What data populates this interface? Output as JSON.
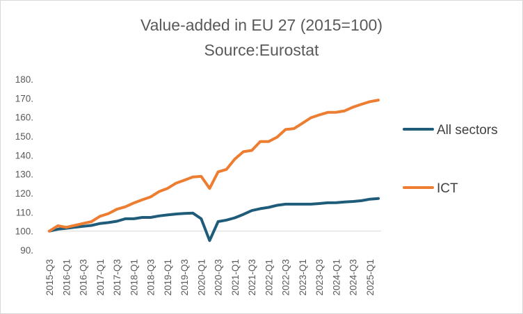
{
  "chart_data": {
    "type": "line",
    "title": "Value-added in EU 27 (2015=100)",
    "subtitle": "Source:Eurostat",
    "xlabel": "",
    "ylabel": "",
    "ylim": [
      90,
      180
    ],
    "yticks": [
      "90.",
      "100.",
      "110.",
      "120.",
      "130.",
      "140.",
      "150.",
      "160.",
      "170.",
      "180."
    ],
    "grid": false,
    "legend_position": "right",
    "x": [
      "2015-Q3",
      "2015-Q4",
      "2016-Q1",
      "2016-Q2",
      "2016-Q3",
      "2016-Q4",
      "2017-Q1",
      "2017-Q2",
      "2017-Q3",
      "2017-Q4",
      "2018-Q1",
      "2018-Q2",
      "2018-Q3",
      "2018-Q4",
      "2019-Q1",
      "2019-Q2",
      "2019-Q3",
      "2019-Q4",
      "2020-Q1",
      "2020-Q2",
      "2020-Q3",
      "2020-Q4",
      "2021-Q1",
      "2021-Q2",
      "2021-Q3",
      "2021-Q4",
      "2022-Q1",
      "2022-Q2",
      "2022-Q3",
      "2022-Q4",
      "2023-Q1",
      "2023-Q2",
      "2023-Q3",
      "2023-Q4",
      "2024-Q1",
      "2024-Q2",
      "2024-Q3",
      "2024-Q4",
      "2025-Q1",
      "2025-Q2"
    ],
    "xtick_labels": [
      "2015-Q3",
      "2016-Q1",
      "2016-Q3",
      "2017-Q1",
      "2017-Q3",
      "2018-Q1",
      "2018-Q3",
      "2019-Q1",
      "2019-Q3",
      "2020-Q1",
      "2020-Q3",
      "2021-Q1",
      "2021-Q3",
      "2022-Q1",
      "2022-Q3",
      "2023-Q1",
      "2023-Q3",
      "2024-Q1",
      "2024-Q3",
      "2025-Q1"
    ],
    "series": [
      {
        "name": "All sectors",
        "color": "#1f5c7a",
        "values": [
          100.0,
          101.0,
          101.5,
          102.0,
          102.5,
          103.0,
          104.0,
          104.5,
          105.2,
          106.5,
          106.5,
          107.2,
          107.2,
          108.0,
          108.5,
          109.0,
          109.3,
          109.5,
          106.5,
          95.0,
          105.0,
          105.8,
          107.0,
          108.8,
          110.8,
          111.8,
          112.5,
          113.6,
          114.2,
          114.2,
          114.2,
          114.2,
          114.5,
          114.9,
          115.0,
          115.3,
          115.6,
          116.0,
          116.8,
          117.2
        ]
      },
      {
        "name": "ICT",
        "color": "#ed7d31",
        "values": [
          100.0,
          102.8,
          102.0,
          103.0,
          104.0,
          105.0,
          107.8,
          109.2,
          111.5,
          112.8,
          114.8,
          116.5,
          118.0,
          120.8,
          122.5,
          125.2,
          126.8,
          128.5,
          128.8,
          122.5,
          131.2,
          132.5,
          138.0,
          141.8,
          142.5,
          147.2,
          147.2,
          149.5,
          153.5,
          154.0,
          156.8,
          159.7,
          161.2,
          162.5,
          162.6,
          163.3,
          165.3,
          166.8,
          168.2,
          169.0
        ]
      }
    ]
  }
}
